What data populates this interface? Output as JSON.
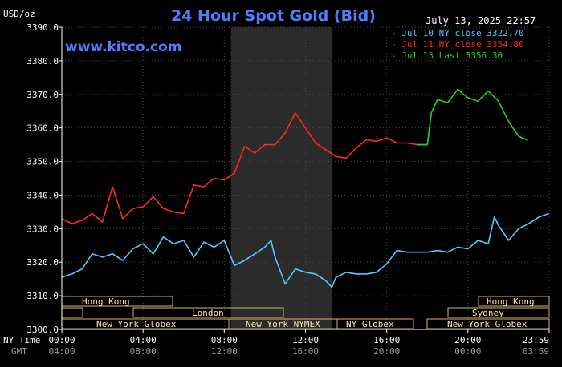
{
  "header": {
    "unit": "USD/oz",
    "title": "24 Hour Spot Gold (Bid)",
    "timestamp": "July 13, 2025 22:57",
    "watermark": "www.kitco.com"
  },
  "legend_items": [
    {
      "label": "- Jul 10 NY close 3322.70",
      "color": "#55c8ff"
    },
    {
      "label": "- Jul 11 NY close 3354.80",
      "color": "#ff2a18"
    },
    {
      "label": "- Jul 13 Last 3356.30",
      "color": "#21d321"
    }
  ],
  "time_rows": {
    "ny_label": "NY Time",
    "gmt_label": "GMT",
    "ny_ticks": [
      "00:00",
      "04:00",
      "08:00",
      "12:00",
      "16:00",
      "20:00",
      "23:59"
    ],
    "gmt_ticks": [
      "04:00",
      "08:00",
      "12:00",
      "16:00",
      "20:00",
      "00:00",
      "03:59"
    ]
  },
  "sessions": {
    "row1": [
      {
        "label": "Hong Kong"
      },
      {
        "label": "Hong Kong"
      }
    ],
    "row2": [
      {
        "label": "London"
      },
      {
        "label": "Sydney"
      }
    ],
    "row3": [
      {
        "label": "New York Globex"
      },
      {
        "label": "New York NYMEX"
      },
      {
        "label": "NY Globex"
      },
      {
        "label": "New York Globex"
      }
    ]
  },
  "chart_data": {
    "type": "line",
    "title": "24 Hour Spot Gold (Bid)",
    "ylabel": "USD/oz",
    "ylim": [
      3300,
      3390
    ],
    "yticks": [
      3300,
      3310,
      3320,
      3330,
      3340,
      3350,
      3360,
      3370,
      3380,
      3390
    ],
    "ytick_labels": [
      "3300.0",
      "3310.0",
      "3320.0",
      "3330.0",
      "3340.0",
      "3350.0",
      "3360.0",
      "3370.0",
      "3380.0",
      "3390.0"
    ],
    "xlim": [
      0,
      24
    ],
    "x_unit": "hours (NY time)",
    "grid": true,
    "highlight_band": [
      8.33,
      13.33
    ],
    "series": [
      {
        "name": "Jul 10",
        "color": "#55c8ff",
        "x": [
          0,
          0.5,
          1,
          1.5,
          2,
          2.5,
          3,
          3.5,
          4,
          4.5,
          5,
          5.5,
          6,
          6.5,
          7,
          7.5,
          8,
          8.5,
          9,
          9.5,
          10,
          10.3,
          10.5,
          11,
          11.5,
          12,
          12.5,
          13,
          13.3,
          13.5,
          14,
          14.5,
          15,
          15.5,
          16,
          16.5,
          17,
          17.5,
          18,
          18.5,
          19,
          19.5,
          20,
          20.5,
          21,
          21.3,
          21.5,
          22,
          22.5,
          23,
          23.5,
          23.99
        ],
        "y": [
          3315.5,
          3316.5,
          3318,
          3322.5,
          3321.5,
          3322.5,
          3320.5,
          3324,
          3325.5,
          3322.5,
          3327.5,
          3325.5,
          3326.5,
          3321.5,
          3326,
          3324.5,
          3326.5,
          3319,
          3320.5,
          3322.5,
          3324.5,
          3326.5,
          3321.5,
          3313.5,
          3318,
          3317,
          3316.5,
          3314.5,
          3312.5,
          3315.5,
          3317,
          3316.5,
          3316.5,
          3317,
          3319.5,
          3323.5,
          3323,
          3323,
          3323,
          3323.5,
          3323,
          3324.5,
          3324,
          3326.5,
          3325.5,
          3333.5,
          3331,
          3326.5,
          3330,
          3331.5,
          3333.5,
          3334.5
        ]
      },
      {
        "name": "Jul 11",
        "color": "#ff2a18",
        "x": [
          0,
          0.5,
          1,
          1.5,
          2,
          2.5,
          3,
          3.5,
          4,
          4.5,
          5,
          5.5,
          6,
          6.5,
          7,
          7.5,
          8,
          8.5,
          9,
          9.5,
          10,
          10.5,
          11,
          11.5,
          12,
          12.5,
          13,
          13.5,
          14,
          14.5,
          15,
          15.5,
          16,
          16.5,
          17,
          17.5,
          18
        ],
        "y": [
          3333,
          3331.5,
          3332.5,
          3334.5,
          3332,
          3342.5,
          3333,
          3336,
          3336.5,
          3339.5,
          3336,
          3335,
          3334.5,
          3343,
          3342.5,
          3345,
          3344.5,
          3346.5,
          3354.5,
          3352.5,
          3355,
          3355,
          3358.5,
          3364.5,
          3360,
          3355.5,
          3353.5,
          3351.5,
          3351,
          3354,
          3356.5,
          3356,
          3357,
          3355.5,
          3355.5,
          3355,
          3355
        ]
      },
      {
        "name": "Jul 13",
        "color": "#21d321",
        "x": [
          17.5,
          18,
          18.2,
          18.5,
          19,
          19.5,
          20,
          20.5,
          21,
          21.5,
          22,
          22.5,
          22.95
        ],
        "y": [
          3355,
          3355,
          3364.5,
          3368.5,
          3367.5,
          3371.5,
          3369,
          3368,
          3371,
          3368,
          3362,
          3357.5,
          3356.3
        ]
      }
    ]
  }
}
